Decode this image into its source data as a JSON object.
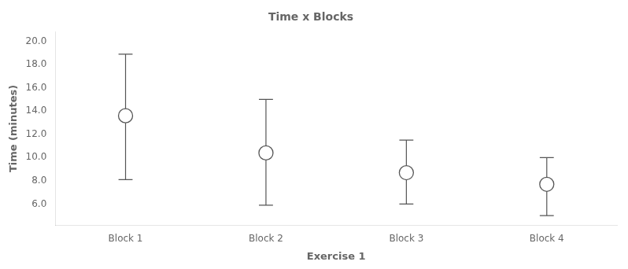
{
  "chart_data": {
    "type": "errorbar",
    "title": "Time x Blocks",
    "xlabel": "Exercise 1",
    "ylabel": "Time (minutes)",
    "categories": [
      "Block 1",
      "Block 2",
      "Block 3",
      "Block 4"
    ],
    "values": [
      13.6,
      10.4,
      8.7,
      7.7
    ],
    "upper_errors": [
      5.3,
      4.6,
      2.8,
      2.3
    ],
    "lower_errors": [
      5.5,
      4.5,
      2.7,
      2.7
    ],
    "color": "#555555",
    "marker": "circle",
    "ylim": [
      4.2,
      20.8
    ],
    "yticks": [
      {
        "value": 6.0,
        "label": "6.0"
      },
      {
        "value": 8.0,
        "label": "8.0"
      },
      {
        "value": 10.0,
        "label": "10.0"
      },
      {
        "value": 12.0,
        "label": "12.0"
      },
      {
        "value": 14.0,
        "label": "14.0"
      },
      {
        "value": 16.0,
        "label": "16.0"
      },
      {
        "value": 18.0,
        "label": "18.0"
      },
      {
        "value": 20.0,
        "label": "20.0"
      }
    ],
    "grid": false
  }
}
